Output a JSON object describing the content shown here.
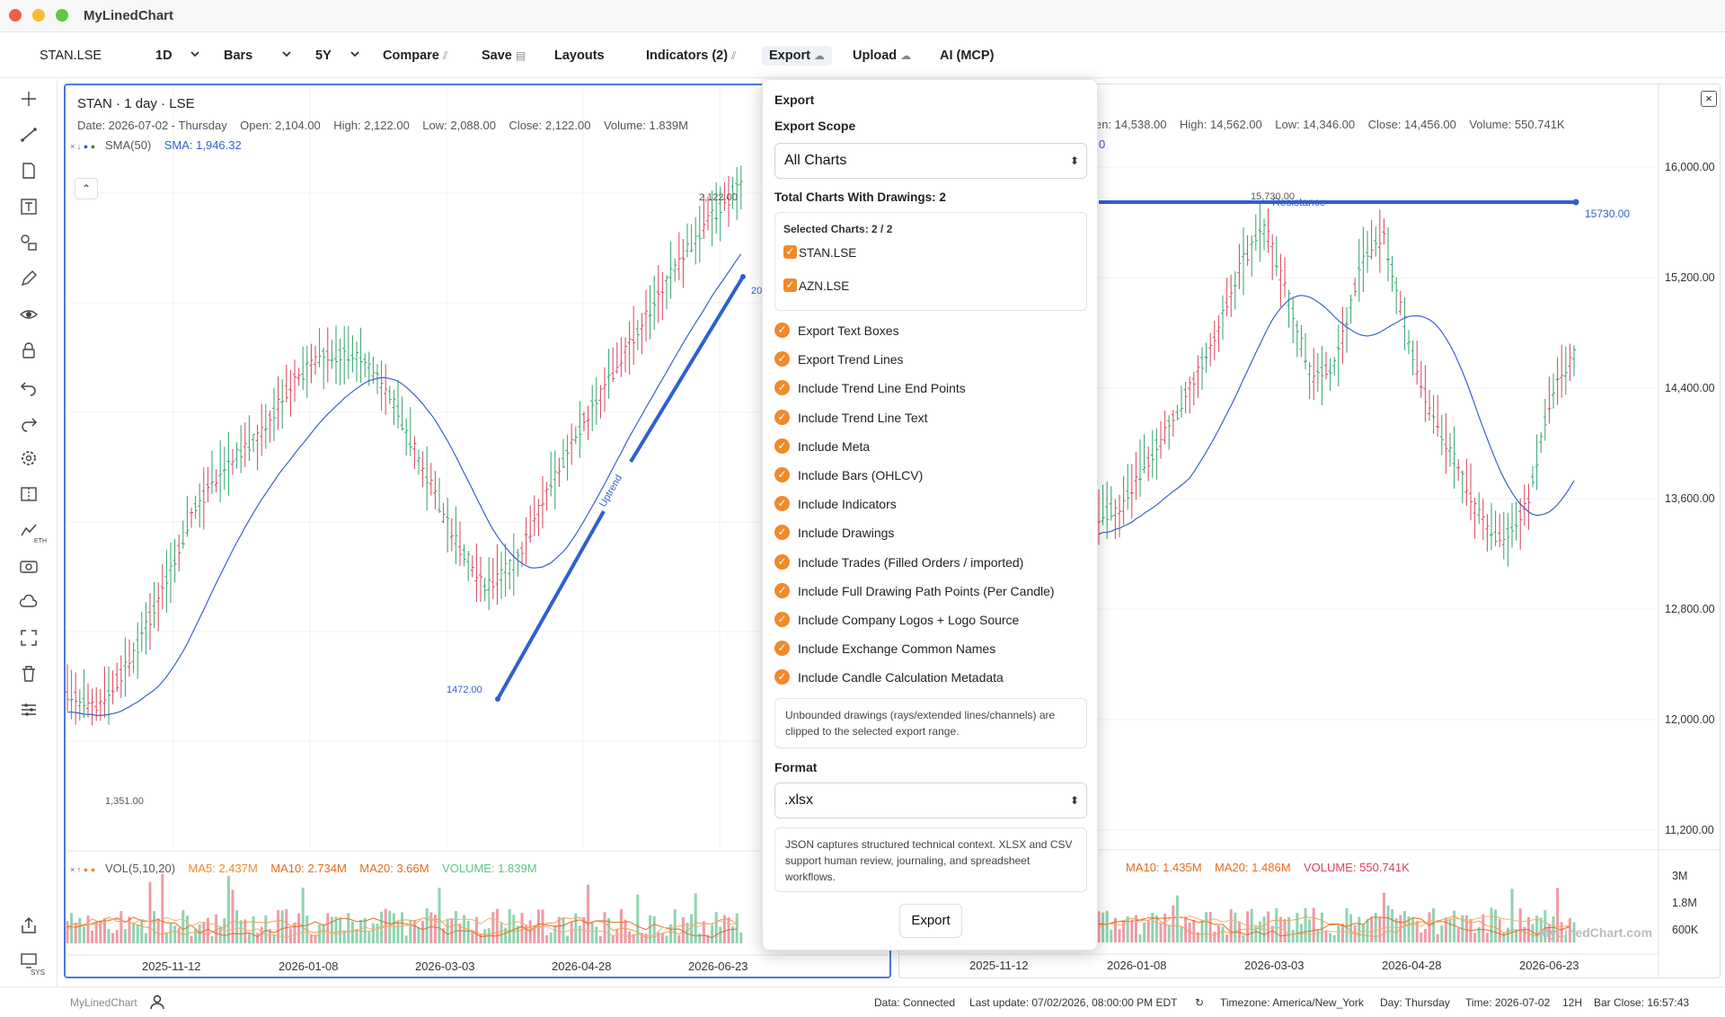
{
  "app": {
    "title": "MyLinedChart",
    "traffic_colors": [
      "#ee5f57",
      "#f5bd2f",
      "#5fc83f"
    ]
  },
  "toolbar": {
    "symbol": "STAN.LSE",
    "interval": "1D",
    "chart_type": "Bars",
    "range": "5Y",
    "compare": "Compare",
    "save": "Save",
    "layouts": "Layouts",
    "indicators": "Indicators (2)",
    "export": "Export",
    "upload": "Upload",
    "ai": "AI (MCP)"
  },
  "left_chart": {
    "header": "STAN · 1 day · LSE",
    "ohlc": {
      "date": "Date: 2026-07-02 - Thursday",
      "open": "Open: 2,104.00",
      "high": "High: 2,122.00",
      "low": "Low: 2,088.00",
      "close": "Close: 2,122.00",
      "volume": "Volume: 1.839M"
    },
    "sma_label": "SMA(50)",
    "sma_value": "SMA: 1,946.32",
    "high_label": "2,122.00",
    "low_label": "1,351.00",
    "trend_start_label": "1472.00",
    "trend_end_label": "20",
    "trend_text": "Uptrend",
    "vol": {
      "label": "VOL(5,10,20)",
      "ma5": "MA5: 2.437M",
      "ma10": "MA10: 2.734M",
      "ma20": "MA20: 3.66M",
      "volume": "VOLUME: 1.839M"
    },
    "x_ticks": [
      "2025-11-12",
      "2026-01-08",
      "2026-03-03",
      "2026-04-28",
      "2026-06-23"
    ]
  },
  "right_chart": {
    "ohlc": {
      "open": "en: 14,538.00",
      "high": "High: 14,562.00",
      "low": "Low: 14,346.00",
      "close": "Close: 14,456.00",
      "volume": "Volume: 550.741K"
    },
    "sma_fragment": "0",
    "resistance_text": "Resistance",
    "resistance_value": "15730.00",
    "high_label": "15,730.00",
    "y_ticks": [
      "16,000.00",
      "15,200.00",
      "14,400.00",
      "13,600.00",
      "12,800.00",
      "12,000.00",
      "11,200.00"
    ],
    "vol_ticks": [
      "3M",
      "1.8M",
      "600K"
    ],
    "vol": {
      "ma10": "MA10: 1.435M",
      "ma20": "MA20: 1.486M",
      "volume": "VOLUME: 550.741K"
    },
    "x_ticks": [
      "2025-11-12",
      "2026-01-08",
      "2026-03-03",
      "2026-04-28",
      "2026-06-23"
    ],
    "watermark": "MyLinedChart.com",
    "close_icon": "×"
  },
  "export_popup": {
    "title": "Export",
    "scope_label": "Export Scope",
    "scope_value": "All Charts",
    "total": "Total Charts With Drawings: 2",
    "selected": "Selected Charts: 2 / 2",
    "charts": [
      "STAN.LSE",
      "AZN.LSE"
    ],
    "options": [
      "Export Text Boxes",
      "Export Trend Lines",
      "Include Trend Line End Points",
      "Include Trend Line Text",
      "Include Meta",
      "Include Bars (OHLCV)",
      "Include Indicators",
      "Include Drawings",
      "Include Trades (Filled Orders / imported)",
      "Include Full Drawing Path Points (Per Candle)",
      "Include Company Logos + Logo Source",
      "Include Exchange Common Names",
      "Include Candle Calculation Metadata"
    ],
    "clip_note": "Unbounded drawings (rays/extended lines/channels) are clipped to the selected export range.",
    "format_label": "Format",
    "format_value": ".xlsx",
    "format_note": "JSON captures structured technical context. XLSX and CSV support human review, journaling, and spreadsheet workflows.",
    "button": "Export"
  },
  "status": {
    "brand": "MyLinedChart",
    "data": "Data: Connected",
    "update": "Last update: 07/02/2026, 08:00:00 PM EDT",
    "timezone": "Timezone: America/New_York",
    "day": "Day: Thursday",
    "time": "Time: 2026-07-02",
    "hours": "12H",
    "bar_close": "Bar Close: 16:57:43",
    "sys": "SYS",
    "eth": "ETH"
  },
  "colors": {
    "accent": "#2f5fd0",
    "up": "#2fa36b",
    "down": "#d9435a",
    "orange": "#f08a2b"
  }
}
